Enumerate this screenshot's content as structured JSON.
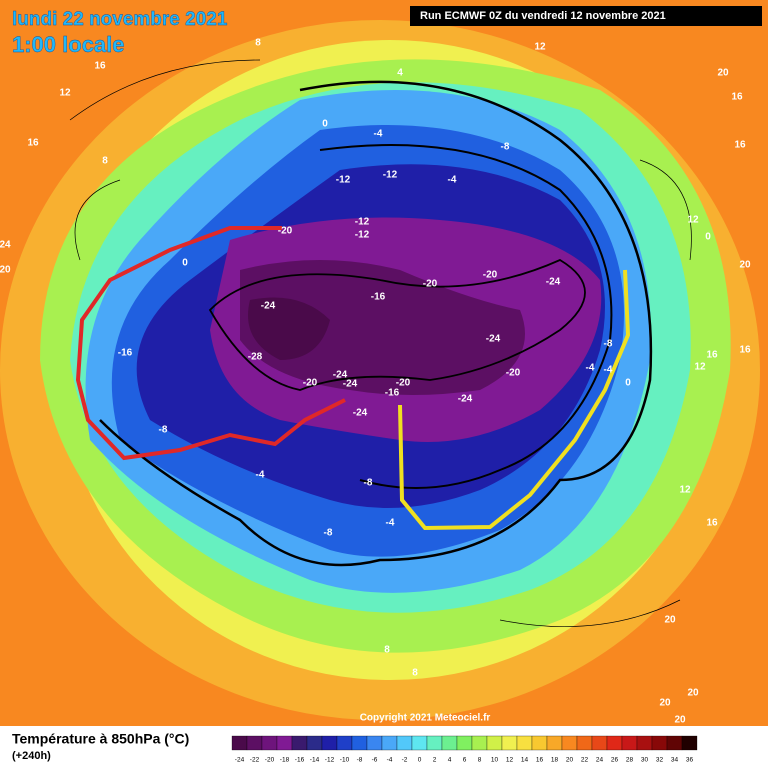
{
  "header": {
    "date": "lundi 22 novembre 2021",
    "time": "1:00 locale",
    "run": "Run ECMWF 0Z du vendredi 12 novembre 2021"
  },
  "map": {
    "copyright": "Copyright 2021 Meteociel.fr",
    "contour_labels": [
      16,
      12,
      16,
      8,
      8,
      4,
      12,
      20,
      16,
      16,
      12,
      0,
      0,
      -4,
      -8,
      -12,
      -12,
      -4,
      -12,
      -12,
      -20,
      0,
      -24,
      -16,
      -20,
      -20,
      -24,
      -24,
      -16,
      -28,
      -24,
      -20,
      -24,
      -20,
      -16,
      -24,
      -24,
      -20,
      -8,
      -4,
      -4,
      0,
      16,
      12,
      16,
      -8,
      -4,
      -8,
      -8,
      -4,
      8,
      8,
      12,
      16,
      20,
      20,
      20,
      24,
      20,
      20,
      20
    ]
  },
  "legend": {
    "title": "Température à 850hPa (°C)",
    "lead": "(+240h)",
    "ticks": [
      -24,
      -22,
      -20,
      -18,
      -16,
      -14,
      -12,
      -10,
      -8,
      -6,
      -4,
      -2,
      0,
      2,
      4,
      6,
      8,
      10,
      12,
      14,
      16,
      18,
      20,
      22,
      24,
      26,
      28,
      30,
      32,
      34,
      36
    ],
    "colors": [
      "#4a0a4a",
      "#5c0f63",
      "#6e147c",
      "#801a94",
      "#3a1a6e",
      "#2b2b8a",
      "#1f1fa8",
      "#1f3fc8",
      "#2060e0",
      "#3a86f0",
      "#4aa8f8",
      "#52c8fa",
      "#5ee6f0",
      "#66f0c0",
      "#6cf090",
      "#80f060",
      "#a8f050",
      "#d0f048",
      "#f0f050",
      "#f8e040",
      "#f8c830",
      "#f8a828",
      "#f88820",
      "#f06818",
      "#e84818",
      "#e02818",
      "#c81818",
      "#a81010",
      "#880808",
      "#600404",
      "#200000"
    ]
  }
}
